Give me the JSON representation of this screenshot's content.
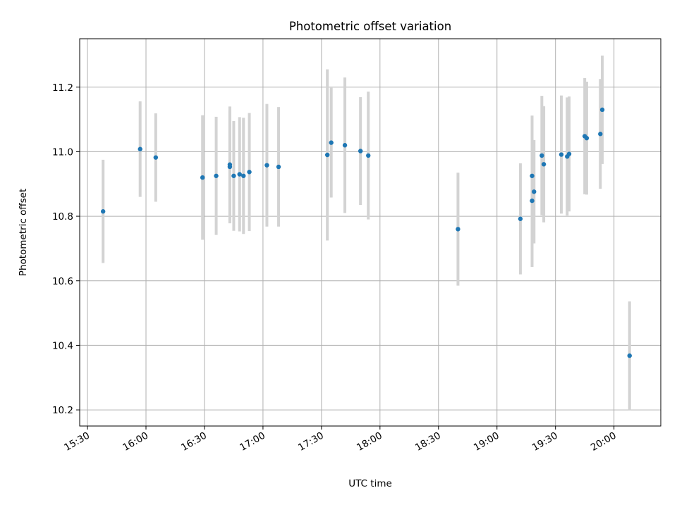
{
  "chart_data": {
    "type": "scatter",
    "title": "Photometric offset variation",
    "xlabel": "UTC time",
    "ylabel": "Photometric offset",
    "x_ticks": [
      "15:30",
      "16:00",
      "16:30",
      "17:00",
      "17:30",
      "18:00",
      "18:30",
      "19:00",
      "19:30",
      "20:00"
    ],
    "y_ticks": [
      "10.2",
      "10.4",
      "10.6",
      "10.8",
      "11.0",
      "11.2"
    ],
    "xlim": [
      "15:26",
      "20:24"
    ],
    "ylim": [
      10.15,
      11.35
    ],
    "grid": true,
    "colors": {
      "point": "#1f77b4",
      "errorbar": "#d3d3d3",
      "grid": "#b0b0b0",
      "axes": "#000000"
    },
    "points": [
      {
        "x": "15:38",
        "y": 10.815,
        "yerr": 0.16
      },
      {
        "x": "15:57",
        "y": 11.008,
        "yerr": 0.148
      },
      {
        "x": "16:05",
        "y": 10.982,
        "yerr": 0.137
      },
      {
        "x": "16:29",
        "y": 10.92,
        "yerr": 0.193
      },
      {
        "x": "16:36",
        "y": 10.925,
        "yerr": 0.183
      },
      {
        "x": "16:43",
        "y": 10.96,
        "yerr": 0.18
      },
      {
        "x": "16:43",
        "y": 10.953,
        "yerr": 0.175
      },
      {
        "x": "16:45",
        "y": 10.925,
        "yerr": 0.17
      },
      {
        "x": "16:48",
        "y": 10.93,
        "yerr": 0.177
      },
      {
        "x": "16:50",
        "y": 10.925,
        "yerr": 0.18
      },
      {
        "x": "16:53",
        "y": 10.937,
        "yerr": 0.183
      },
      {
        "x": "17:02",
        "y": 10.958,
        "yerr": 0.19
      },
      {
        "x": "17:08",
        "y": 10.953,
        "yerr": 0.185
      },
      {
        "x": "17:33",
        "y": 10.99,
        "yerr": 0.265
      },
      {
        "x": "17:35",
        "y": 11.028,
        "yerr": 0.17
      },
      {
        "x": "17:42",
        "y": 11.02,
        "yerr": 0.21
      },
      {
        "x": "17:50",
        "y": 11.002,
        "yerr": 0.167
      },
      {
        "x": "17:54",
        "y": 10.988,
        "yerr": 0.198
      },
      {
        "x": "18:40",
        "y": 10.76,
        "yerr": 0.175
      },
      {
        "x": "19:12",
        "y": 10.792,
        "yerr": 0.172
      },
      {
        "x": "19:18",
        "y": 10.925,
        "yerr": 0.187
      },
      {
        "x": "19:18",
        "y": 10.848,
        "yerr": 0.205
      },
      {
        "x": "19:19",
        "y": 10.876,
        "yerr": 0.16
      },
      {
        "x": "19:23",
        "y": 10.988,
        "yerr": 0.185
      },
      {
        "x": "19:24",
        "y": 10.961,
        "yerr": 0.18
      },
      {
        "x": "19:33",
        "y": 10.991,
        "yerr": 0.183
      },
      {
        "x": "19:36",
        "y": 10.985,
        "yerr": 0.183
      },
      {
        "x": "19:37",
        "y": 10.993,
        "yerr": 0.178
      },
      {
        "x": "19:45",
        "y": 11.048,
        "yerr": 0.18
      },
      {
        "x": "19:46",
        "y": 11.042,
        "yerr": 0.175
      },
      {
        "x": "19:53",
        "y": 11.055,
        "yerr": 0.17
      },
      {
        "x": "19:54",
        "y": 11.13,
        "yerr": 0.168
      },
      {
        "x": "20:08",
        "y": 10.368,
        "yerr": 0.168
      }
    ]
  }
}
